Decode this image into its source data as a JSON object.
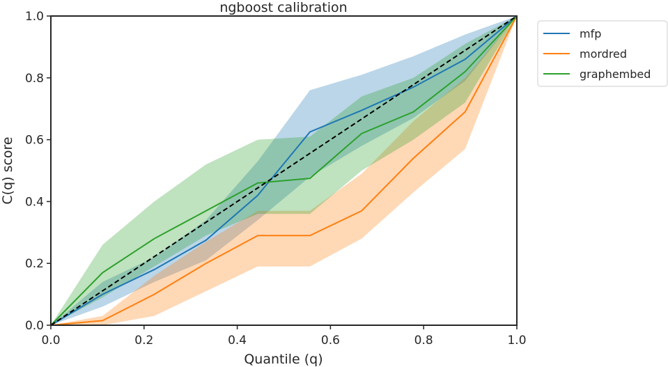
{
  "chart_data": {
    "type": "line",
    "title": "ngboost calibration",
    "xlabel": "Quantile (q)",
    "ylabel": "C(q) score",
    "xlim": [
      0.0,
      1.0
    ],
    "ylim": [
      0.0,
      1.0
    ],
    "xticks": [
      "0.0",
      "0.2",
      "0.4",
      "0.6",
      "0.8",
      "1.0"
    ],
    "yticks": [
      "0.0",
      "0.2",
      "0.4",
      "0.6",
      "0.8",
      "1.0"
    ],
    "grid": false,
    "legend_position": "outside upper right",
    "x": [
      0.0,
      0.111,
      0.222,
      0.333,
      0.444,
      0.556,
      0.667,
      0.778,
      0.889,
      1.0
    ],
    "series": [
      {
        "name": "mfp",
        "color": "#1f77b4",
        "values": [
          0.0,
          0.1,
          0.18,
          0.275,
          0.42,
          0.625,
          0.695,
          0.77,
          0.86,
          1.0
        ],
        "lower": [
          0.0,
          0.06,
          0.14,
          0.21,
          0.34,
          0.48,
          0.58,
          0.67,
          0.79,
          1.0
        ],
        "upper": [
          0.0,
          0.14,
          0.22,
          0.34,
          0.53,
          0.76,
          0.81,
          0.87,
          0.94,
          1.0
        ]
      },
      {
        "name": "mordred",
        "color": "#ff7f0e",
        "values": [
          0.0,
          0.015,
          0.1,
          0.2,
          0.29,
          0.29,
          0.37,
          0.54,
          0.69,
          1.0
        ],
        "lower": [
          0.0,
          0.0,
          0.03,
          0.11,
          0.19,
          0.19,
          0.28,
          0.43,
          0.57,
          1.0
        ],
        "upper": [
          0.0,
          0.03,
          0.16,
          0.27,
          0.37,
          0.37,
          0.49,
          0.66,
          0.8,
          1.0
        ]
      },
      {
        "name": "graphembed",
        "color": "#2ca02c",
        "values": [
          0.0,
          0.17,
          0.28,
          0.37,
          0.46,
          0.475,
          0.62,
          0.69,
          0.82,
          1.0
        ],
        "lower": [
          0.0,
          0.09,
          0.19,
          0.29,
          0.36,
          0.36,
          0.5,
          0.6,
          0.72,
          1.0
        ],
        "upper": [
          0.0,
          0.26,
          0.4,
          0.52,
          0.6,
          0.61,
          0.74,
          0.8,
          0.91,
          1.0
        ]
      }
    ],
    "reference_line": {
      "from": [
        0.0,
        0.0
      ],
      "to": [
        1.0,
        1.0
      ],
      "style": "dashed",
      "color": "#000000"
    }
  }
}
